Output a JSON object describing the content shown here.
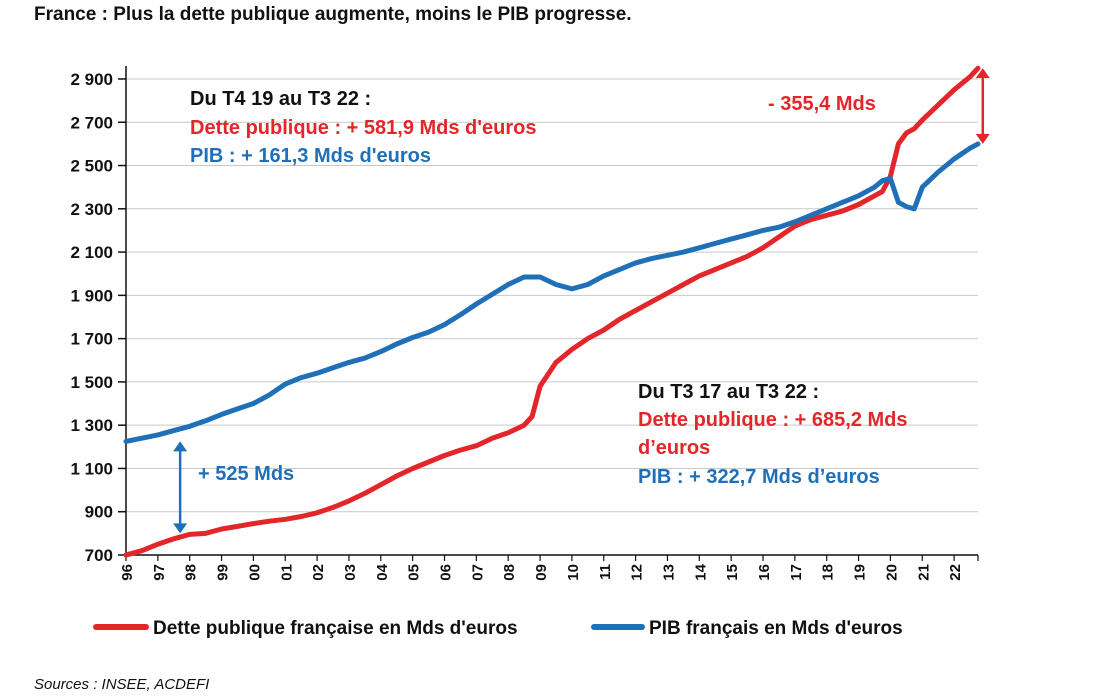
{
  "title": "France : Plus la dette publique augmente, moins le PIB progresse.",
  "source": "Sources : INSEE, ACDEFI",
  "colors": {
    "debt": "#e3262a",
    "gdp": "#1f70b8",
    "grid": "#c9c9c9",
    "axis": "#111111"
  },
  "chart_data": {
    "type": "line",
    "title": "France : Plus la dette publique augmente, moins le PIB progresse.",
    "xlabel": "",
    "ylabel": "",
    "xlim": [
      1996.0,
      2022.75
    ],
    "ylim": [
      700,
      2960
    ],
    "grid": "horizontal",
    "legend_position": "bottom",
    "y_ticks": [
      700,
      900,
      1100,
      1300,
      1500,
      1700,
      1900,
      2100,
      2300,
      2500,
      2700,
      2900
    ],
    "y_tick_labels": [
      "700",
      "900",
      "1 100",
      "1 300",
      "1 500",
      "1 700",
      "1 900",
      "2 100",
      "2 300",
      "2 500",
      "2 700",
      "2 900"
    ],
    "x_tick_labels": [
      "96",
      "97",
      "98",
      "99",
      "00",
      "01",
      "02",
      "03",
      "04",
      "05",
      "06",
      "07",
      "08",
      "09",
      "10",
      "11",
      "12",
      "13",
      "14",
      "15",
      "16",
      "17",
      "18",
      "19",
      "20",
      "21",
      "22"
    ],
    "series": [
      {
        "name": "Dette publique française en Mds d'euros",
        "color": "#e3262a",
        "x": [
          1996.0,
          1996.5,
          1997.0,
          1997.5,
          1998.0,
          1998.5,
          1999.0,
          1999.5,
          2000.0,
          2000.5,
          2001.0,
          2001.5,
          2002.0,
          2002.5,
          2003.0,
          2003.5,
          2004.0,
          2004.5,
          2005.0,
          2005.5,
          2006.0,
          2006.5,
          2007.0,
          2007.5,
          2008.0,
          2008.5,
          2008.75,
          2009.0,
          2009.5,
          2010.0,
          2010.5,
          2011.0,
          2011.5,
          2012.0,
          2012.5,
          2013.0,
          2013.5,
          2014.0,
          2014.5,
          2015.0,
          2015.5,
          2016.0,
          2016.5,
          2017.0,
          2017.5,
          2018.0,
          2018.5,
          2019.0,
          2019.5,
          2019.75,
          2020.0,
          2020.25,
          2020.5,
          2020.75,
          2021.0,
          2021.5,
          2022.0,
          2022.5,
          2022.75
        ],
        "y": [
          700,
          720,
          750,
          775,
          795,
          800,
          820,
          832,
          845,
          856,
          865,
          878,
          895,
          920,
          950,
          985,
          1025,
          1065,
          1100,
          1130,
          1160,
          1185,
          1205,
          1240,
          1265,
          1300,
          1340,
          1480,
          1590,
          1650,
          1700,
          1740,
          1790,
          1830,
          1870,
          1910,
          1950,
          1990,
          2020,
          2050,
          2080,
          2120,
          2170,
          2220,
          2250,
          2270,
          2290,
          2320,
          2360,
          2380,
          2450,
          2600,
          2650,
          2670,
          2710,
          2780,
          2850,
          2910,
          2950
        ]
      },
      {
        "name": "PIB français en Mds d'euros",
        "color": "#1f70b8",
        "x": [
          1996.0,
          1996.5,
          1997.0,
          1997.5,
          1998.0,
          1998.5,
          1999.0,
          1999.5,
          2000.0,
          2000.5,
          2001.0,
          2001.5,
          2002.0,
          2002.5,
          2003.0,
          2003.5,
          2004.0,
          2004.5,
          2005.0,
          2005.5,
          2006.0,
          2006.5,
          2007.0,
          2007.5,
          2008.0,
          2008.5,
          2009.0,
          2009.5,
          2010.0,
          2010.5,
          2011.0,
          2011.5,
          2012.0,
          2012.5,
          2013.0,
          2013.5,
          2014.0,
          2014.5,
          2015.0,
          2015.5,
          2016.0,
          2016.5,
          2017.0,
          2017.5,
          2018.0,
          2018.5,
          2019.0,
          2019.5,
          2019.75,
          2020.0,
          2020.25,
          2020.5,
          2020.75,
          2021.0,
          2021.5,
          2022.0,
          2022.5,
          2022.75
        ],
        "y": [
          1225,
          1240,
          1255,
          1275,
          1295,
          1320,
          1350,
          1375,
          1400,
          1440,
          1490,
          1520,
          1540,
          1565,
          1590,
          1610,
          1640,
          1675,
          1705,
          1730,
          1765,
          1810,
          1860,
          1905,
          1950,
          1985,
          1985,
          1950,
          1930,
          1950,
          1990,
          2020,
          2050,
          2070,
          2085,
          2100,
          2120,
          2140,
          2160,
          2180,
          2200,
          2215,
          2240,
          2270,
          2300,
          2330,
          2360,
          2400,
          2430,
          2440,
          2330,
          2310,
          2300,
          2400,
          2470,
          2530,
          2580,
          2600
        ]
      }
    ],
    "annotations": [
      {
        "id": "period-a-heading",
        "text": "Du T4 19 au T3 22 :",
        "color": "#111111"
      },
      {
        "id": "period-a-debt",
        "text": "Dette publique : + 581,9 Mds d'euros",
        "color": "#e3262a"
      },
      {
        "id": "period-a-gdp",
        "text": "PIB : + 161,3 Mds d'euros",
        "color": "#1f70b8"
      },
      {
        "id": "gap-end",
        "text": "- 355,4 Mds",
        "color": "#e3262a"
      },
      {
        "id": "gap-start",
        "text": "+ 525 Mds",
        "color": "#1f70b8"
      },
      {
        "id": "period-b-heading",
        "text": "Du T3 17 au T3 22 :",
        "color": "#111111"
      },
      {
        "id": "period-b-debt-1",
        "text": "Dette publique : + 685,2 Mds",
        "color": "#e3262a"
      },
      {
        "id": "period-b-debt-2",
        "text": "d’euros",
        "color": "#e3262a"
      },
      {
        "id": "period-b-gdp",
        "text": "PIB : + 322,7 Mds d’euros",
        "color": "#1f70b8"
      }
    ],
    "gap_markers": [
      {
        "x": 1997.7,
        "y_from": 1225,
        "y_to": 800,
        "color": "#1f70b8"
      },
      {
        "x": 2022.9,
        "y_from": 2950,
        "y_to": 2600,
        "color": "#e3262a"
      }
    ]
  }
}
